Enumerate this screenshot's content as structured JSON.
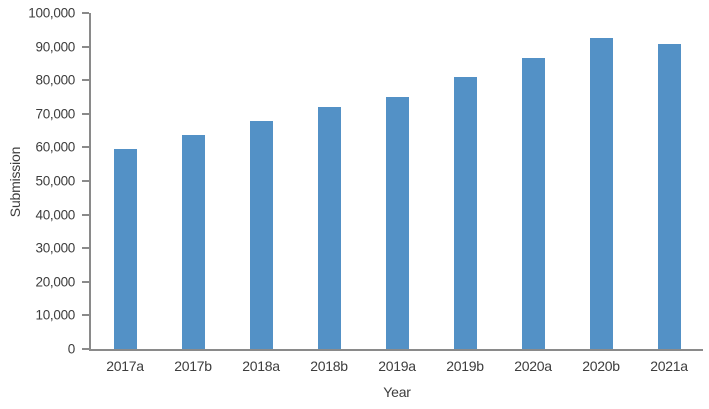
{
  "chart_data": {
    "type": "bar",
    "title": "",
    "xlabel": "Year",
    "ylabel": "Submission",
    "categories": [
      "2017a",
      "2017b",
      "2018a",
      "2018b",
      "2019a",
      "2019b",
      "2020a",
      "2020b",
      "2021a"
    ],
    "values": [
      59500,
      63600,
      68000,
      72100,
      74900,
      81100,
      86500,
      92500,
      90900
    ],
    "ylim": [
      0,
      100000
    ],
    "y_ticks": [
      {
        "value": 0,
        "label": "0"
      },
      {
        "value": 10000,
        "label": "10,000"
      },
      {
        "value": 20000,
        "label": "20,000"
      },
      {
        "value": 30000,
        "label": "30,000"
      },
      {
        "value": 40000,
        "label": "40,000"
      },
      {
        "value": 50000,
        "label": "50,000"
      },
      {
        "value": 60000,
        "label": "60,000"
      },
      {
        "value": 70000,
        "label": "70,000"
      },
      {
        "value": 80000,
        "label": "80,000"
      },
      {
        "value": 90000,
        "label": "90,000"
      },
      {
        "value": 100000,
        "label": "100,000"
      }
    ],
    "grid": false,
    "legend_position": "none",
    "colors": {
      "bar": "#5391c6",
      "axis": "#8a8a8a",
      "text": "#3d3d3d",
      "background": "#ffffff"
    }
  }
}
